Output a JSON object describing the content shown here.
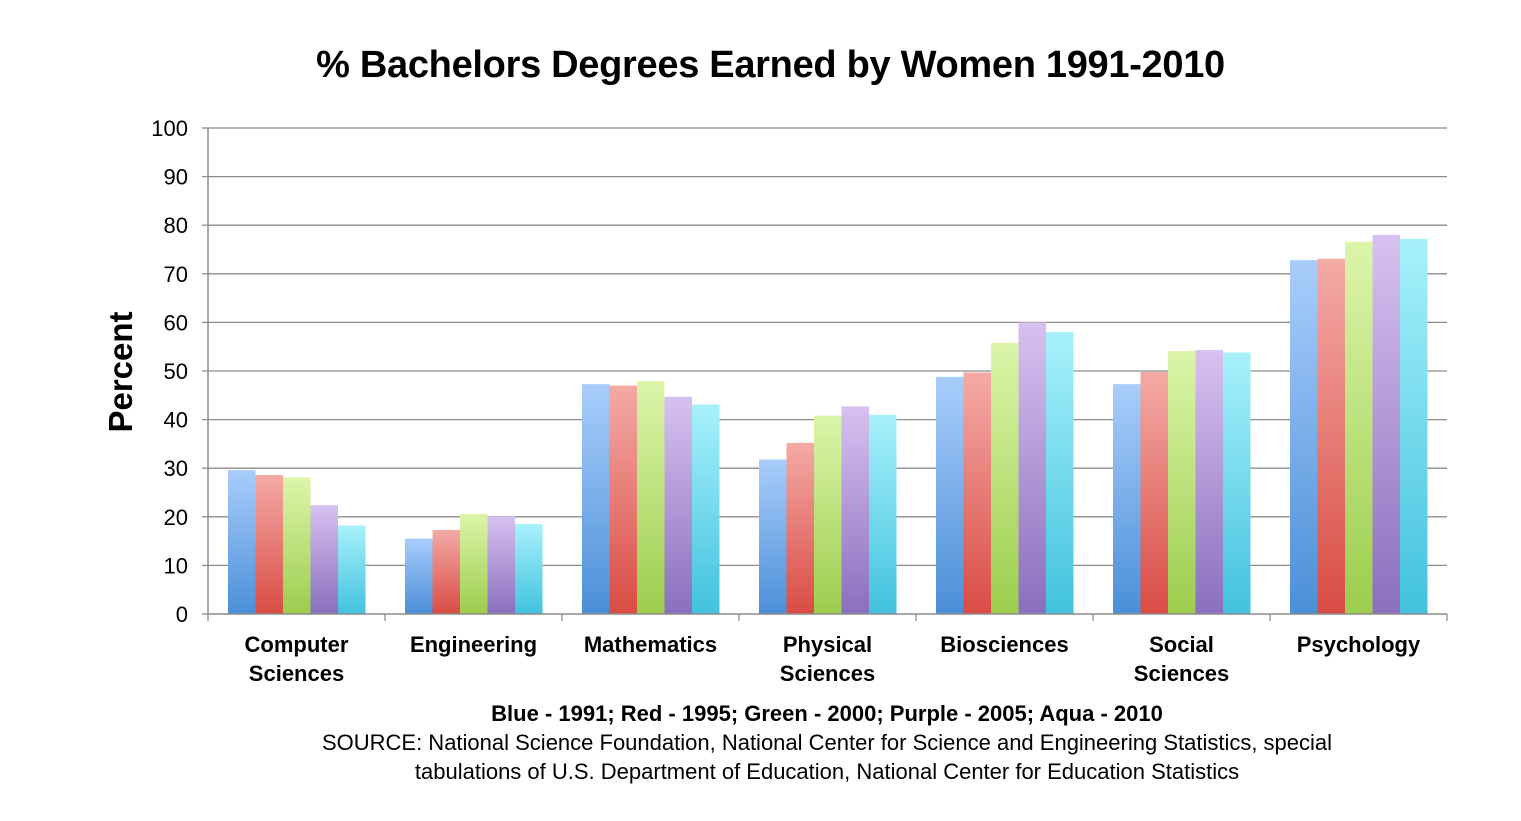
{
  "chart_data": {
    "type": "bar",
    "title": "% Bachelors Degrees Earned by Women 1991-2010",
    "ylabel": "Percent",
    "xlabel": "",
    "ylim": [
      0,
      100
    ],
    "yticks": [
      0,
      10,
      20,
      30,
      40,
      50,
      60,
      70,
      80,
      90,
      100
    ],
    "grid": true,
    "categories": [
      [
        "Computer",
        "Sciences"
      ],
      [
        "Engineering"
      ],
      [
        "Mathematics"
      ],
      [
        "Physical",
        "Sciences"
      ],
      [
        "Biosciences"
      ],
      [
        "Social",
        "Sciences"
      ],
      [
        "Psychology"
      ]
    ],
    "series": [
      {
        "color_top": "#a9cdfb",
        "color_bottom": "#4b8fd8",
        "values": [
          29.6,
          15.5,
          47.3,
          31.8,
          48.8,
          47.3,
          72.8
        ]
      },
      {
        "color_top": "#f4aaa6",
        "color_bottom": "#d94c44",
        "values": [
          28.6,
          17.3,
          47.0,
          35.2,
          49.7,
          49.8,
          73.1
        ]
      },
      {
        "color_top": "#dcf5aa",
        "color_bottom": "#9ccd4e",
        "values": [
          28.1,
          20.6,
          47.9,
          40.8,
          55.8,
          54.1,
          76.6
        ]
      },
      {
        "color_top": "#d7c1f0",
        "color_bottom": "#8a6fbd",
        "values": [
          22.4,
          20.1,
          44.7,
          42.7,
          60.0,
          54.3,
          78.0
        ]
      },
      {
        "color_top": "#a8f1fb",
        "color_bottom": "#42c2de",
        "values": [
          18.2,
          18.5,
          43.1,
          41.0,
          58.0,
          53.8,
          77.2
        ]
      }
    ]
  },
  "footer": {
    "legend_note": "Blue - 1991; Red - 1995; Green - 2000; Purple - 2005; Aqua - 2010",
    "source_line1": "SOURCE:  National Science Foundation, National Center for Science and Engineering Statistics, special",
    "source_line2": "tabulations of U.S. Department of Education, National Center for Education Statistics"
  }
}
